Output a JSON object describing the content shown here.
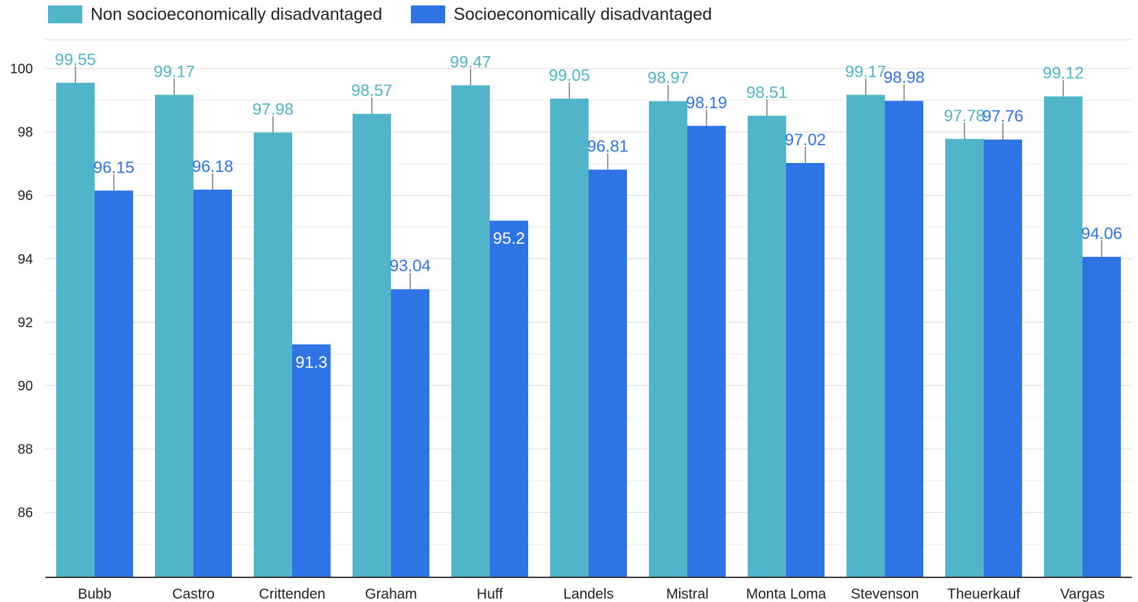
{
  "colors": {
    "non_disadvantaged": "#50B5C8",
    "disadvantaged": "#2F74E4",
    "grid": "#d8d8d8",
    "axis": "#333333",
    "whisker": "#777777"
  },
  "legend": {
    "items": [
      {
        "label": "Non socioeconomically disadvantaged",
        "color": "#50B5C8"
      },
      {
        "label": "Socioeconomically disadvantaged",
        "color": "#2F74E4"
      }
    ]
  },
  "chart_data": {
    "type": "bar",
    "title": "",
    "xlabel": "",
    "ylabel": "",
    "ylim": [
      85,
      101
    ],
    "yticks": [
      86,
      88,
      90,
      92,
      94,
      96,
      98,
      100
    ],
    "minor_gridlines": true,
    "legend_position": "top-left",
    "categories": [
      "Bubb",
      "Castro",
      "Crittenden",
      "Graham",
      "Huff",
      "Landels",
      "Mistral",
      "Monta Loma",
      "Stevenson",
      "Theuerkauf",
      "Vargas"
    ],
    "series": [
      {
        "name": "Non socioeconomically disadvantaged",
        "values": [
          99.55,
          99.17,
          97.98,
          98.57,
          99.47,
          99.05,
          98.97,
          98.51,
          99.17,
          97.78,
          99.12
        ],
        "labels": [
          "99.55",
          "99.17",
          "97.98",
          "98.57",
          "99.47",
          "99.05",
          "98.97",
          "98.51",
          "99.17",
          "97.78",
          "99.12"
        ]
      },
      {
        "name": "Socioeconomically disadvantaged",
        "values": [
          96.15,
          96.18,
          91.3,
          93.04,
          95.2,
          96.81,
          98.19,
          97.02,
          98.98,
          97.76,
          94.06
        ],
        "labels": [
          "96.15",
          "96.18",
          "91.3",
          "93.04",
          "95.2",
          "96.81",
          "98.19",
          "97.02",
          "98.98",
          "97.76",
          "94.06"
        ],
        "inside_label": [
          false,
          false,
          true,
          false,
          true,
          false,
          false,
          false,
          false,
          false,
          false
        ]
      }
    ]
  }
}
